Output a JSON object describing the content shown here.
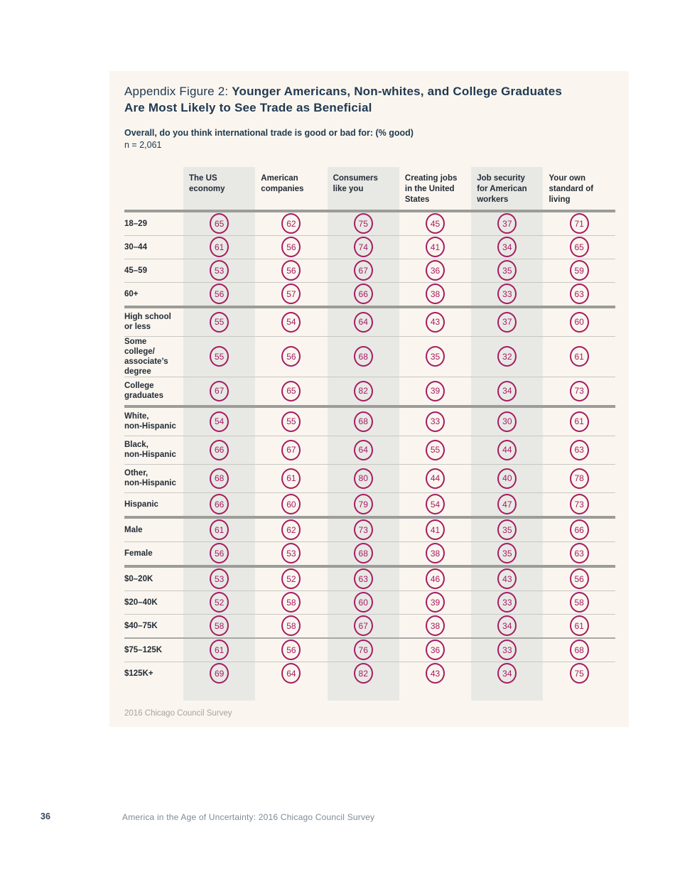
{
  "figure": {
    "title_prefix": "Appendix Figure 2: ",
    "title_bold": "Younger Americans, Non-whites, and College Graduates Are Most Likely to See Trade as Beneficial",
    "subtitle": "Overall, do you think international trade is good or bad for: (% good)",
    "sample_size": "n = 2,061",
    "source": "2016 Chicago Council Survey"
  },
  "page_footer": {
    "page_number": "36",
    "text": "America in the Age of Uncertainty: 2016 Chicago Council Survey"
  },
  "colors": {
    "accent_magenta": "#a61c63",
    "figure_background": "#faf6ef",
    "shaded_band": "#e8e9e5",
    "navy_text": "#213a52",
    "thick_rule": "#9c9c99",
    "thin_rule": "#c8c7c2"
  },
  "chart_data": {
    "type": "table",
    "title": "Appendix Figure 2: Younger Americans, Non-whites, and College Graduates Are Most Likely to See Trade as Beneficial",
    "question": "Overall, do you think international trade is good or bad for: (% good)",
    "sample_n": 2061,
    "columns": [
      "The US economy",
      "American companies",
      "Consumers like you",
      "Creating jobs in the United States",
      "Job security for American workers",
      "Your own standard of living"
    ],
    "shaded_columns": [
      0,
      2,
      4
    ],
    "rows": [
      {
        "label": "18–29",
        "values": [
          65,
          62,
          75,
          45,
          37,
          71
        ],
        "divider": "thin"
      },
      {
        "label": "30–44",
        "values": [
          61,
          56,
          74,
          41,
          34,
          65
        ],
        "divider": "thin"
      },
      {
        "label": "45–59",
        "values": [
          53,
          56,
          67,
          36,
          35,
          59
        ],
        "divider": "thin"
      },
      {
        "label": "60+",
        "values": [
          56,
          57,
          66,
          38,
          33,
          63
        ],
        "divider": "thick"
      },
      {
        "label": "High school\nor less",
        "values": [
          55,
          54,
          64,
          43,
          37,
          60
        ],
        "divider": "thin"
      },
      {
        "label": "Some college/\nassociate’s\ndegree",
        "values": [
          55,
          56,
          68,
          35,
          32,
          61
        ],
        "divider": "thin"
      },
      {
        "label": "College\ngraduates",
        "values": [
          67,
          65,
          82,
          39,
          34,
          73
        ],
        "divider": "thick"
      },
      {
        "label": "White,\nnon-Hispanic",
        "values": [
          54,
          55,
          68,
          33,
          30,
          61
        ],
        "divider": "thin"
      },
      {
        "label": "Black,\nnon-Hispanic",
        "values": [
          66,
          67,
          64,
          55,
          44,
          63
        ],
        "divider": "thin"
      },
      {
        "label": "Other,\nnon-Hispanic",
        "values": [
          68,
          61,
          80,
          44,
          40,
          78
        ],
        "divider": "thin"
      },
      {
        "label": "Hispanic",
        "values": [
          66,
          60,
          79,
          54,
          47,
          73
        ],
        "divider": "thick"
      },
      {
        "label": "Male",
        "values": [
          61,
          62,
          73,
          41,
          35,
          66
        ],
        "divider": "thin"
      },
      {
        "label": "Female",
        "values": [
          56,
          53,
          68,
          38,
          35,
          63
        ],
        "divider": "thick"
      },
      {
        "label": "$0–20K",
        "values": [
          53,
          52,
          63,
          46,
          43,
          56
        ],
        "divider": "thin"
      },
      {
        "label": "$20–40K",
        "values": [
          52,
          58,
          60,
          39,
          33,
          58
        ],
        "divider": "thin"
      },
      {
        "label": "$40–75K",
        "values": [
          58,
          58,
          67,
          38,
          34,
          61
        ],
        "divider": "medium"
      },
      {
        "label": "$75–125K",
        "values": [
          61,
          56,
          76,
          36,
          33,
          68
        ],
        "divider": "thin"
      },
      {
        "label": "$125K+",
        "values": [
          69,
          64,
          82,
          43,
          34,
          75
        ],
        "divider": "none"
      }
    ],
    "legend_position": "none",
    "grid": "row-rules-with-section-dividers"
  }
}
